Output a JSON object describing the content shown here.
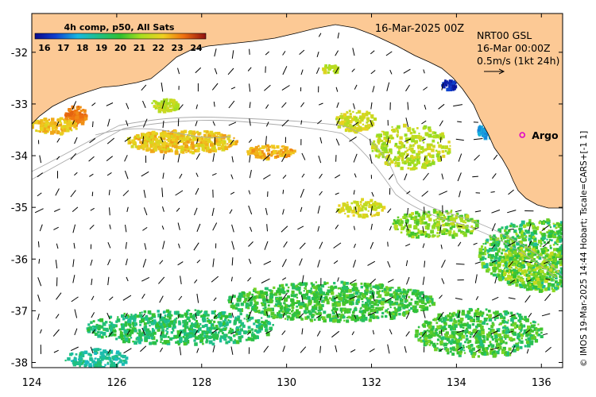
{
  "map": {
    "title_date": "16-Mar-2025 00Z",
    "colorbar": {
      "title": "4h comp, p50, All Sats",
      "ticks": [
        "16",
        "17",
        "18",
        "19",
        "20",
        "21",
        "22",
        "23",
        "24"
      ],
      "min": 15.5,
      "max": 24.5
    },
    "current_info": {
      "line1": "NRT00 GSL",
      "line2": "16-Mar 00:00Z",
      "line3": "0.5m/s (1kt 24h)"
    },
    "argo_label": "Argo",
    "side_credit": "© IMOS 19-Mar-2025 14:44 Hobart; Tscale=CARS+[-1 1]",
    "lon_labels": [
      "124",
      "126",
      "128",
      "130",
      "132",
      "134",
      "136"
    ],
    "lat_labels": [
      "-32",
      "-33",
      "-34",
      "-35",
      "-36",
      "-37",
      "-38"
    ],
    "lon_ticks": [
      124,
      126,
      128,
      130,
      132,
      134,
      136
    ],
    "lat_ticks": [
      -32,
      -33,
      -34,
      -35,
      -36,
      -37,
      -38
    ],
    "extent": {
      "lon_min": 124,
      "lon_max": 136.5,
      "lat_min": -38.1,
      "lat_max": -31.25
    },
    "argo_float": {
      "lon": 135.55,
      "lat": -33.6
    },
    "colors": {
      "land": "#fcc995",
      "argo_marker": "#e000c8",
      "vector": "#000000",
      "bathymetry": "#aaaaaa"
    }
  }
}
